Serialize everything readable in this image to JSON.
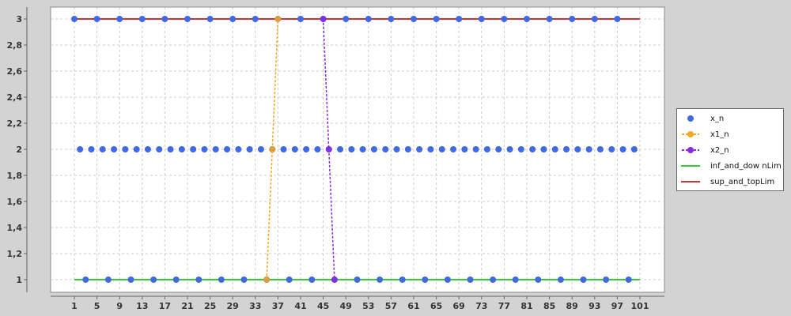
{
  "chart_data": {
    "type": "line",
    "xlim": [
      1,
      101
    ],
    "ylim": [
      1,
      3
    ],
    "x_ticks": [
      1,
      5,
      9,
      13,
      17,
      21,
      25,
      29,
      33,
      37,
      41,
      45,
      49,
      53,
      57,
      61,
      65,
      69,
      73,
      77,
      81,
      85,
      89,
      93,
      97,
      101
    ],
    "y_ticks": [
      1,
      1.2,
      1.4,
      1.6,
      1.8,
      2,
      2.2,
      2.4,
      2.6,
      2.8,
      3
    ],
    "y_tick_labels": [
      "1",
      "1,2",
      "1,4",
      "1,6",
      "1,8",
      "2",
      "2,2",
      "2,4",
      "2,6",
      "2,8",
      "3"
    ],
    "grid": true,
    "legend_position": "right",
    "series": [
      {
        "name": "x_n",
        "style": "points",
        "color": "#4169e1",
        "points": [
          [
            1,
            3
          ],
          [
            2,
            2
          ],
          [
            3,
            1
          ],
          [
            4,
            2
          ],
          [
            5,
            3
          ],
          [
            6,
            2
          ],
          [
            7,
            1
          ],
          [
            8,
            2
          ],
          [
            9,
            3
          ],
          [
            10,
            2
          ],
          [
            11,
            1
          ],
          [
            12,
            2
          ],
          [
            13,
            3
          ],
          [
            14,
            2
          ],
          [
            15,
            1
          ],
          [
            16,
            2
          ],
          [
            17,
            3
          ],
          [
            18,
            2
          ],
          [
            19,
            1
          ],
          [
            20,
            2
          ],
          [
            21,
            3
          ],
          [
            22,
            2
          ],
          [
            23,
            1
          ],
          [
            24,
            2
          ],
          [
            25,
            3
          ],
          [
            26,
            2
          ],
          [
            27,
            1
          ],
          [
            28,
            2
          ],
          [
            29,
            3
          ],
          [
            30,
            2
          ],
          [
            31,
            1
          ],
          [
            32,
            2
          ],
          [
            33,
            3
          ],
          [
            34,
            2
          ],
          [
            35,
            1
          ],
          [
            36,
            2
          ],
          [
            37,
            3
          ],
          [
            38,
            2
          ],
          [
            39,
            1
          ],
          [
            40,
            2
          ],
          [
            41,
            3
          ],
          [
            42,
            2
          ],
          [
            43,
            1
          ],
          [
            44,
            2
          ],
          [
            45,
            3
          ],
          [
            46,
            2
          ],
          [
            47,
            1
          ],
          [
            48,
            2
          ],
          [
            49,
            3
          ],
          [
            50,
            2
          ],
          [
            51,
            1
          ],
          [
            52,
            2
          ],
          [
            53,
            3
          ],
          [
            54,
            2
          ],
          [
            55,
            1
          ],
          [
            56,
            2
          ],
          [
            57,
            3
          ],
          [
            58,
            2
          ],
          [
            59,
            1
          ],
          [
            60,
            2
          ],
          [
            61,
            3
          ],
          [
            62,
            2
          ],
          [
            63,
            1
          ],
          [
            64,
            2
          ],
          [
            65,
            3
          ],
          [
            66,
            2
          ],
          [
            67,
            1
          ],
          [
            68,
            2
          ],
          [
            69,
            3
          ],
          [
            70,
            2
          ],
          [
            71,
            1
          ],
          [
            72,
            2
          ],
          [
            73,
            3
          ],
          [
            74,
            2
          ],
          [
            75,
            1
          ],
          [
            76,
            2
          ],
          [
            77,
            3
          ],
          [
            78,
            2
          ],
          [
            79,
            1
          ],
          [
            80,
            2
          ],
          [
            81,
            3
          ],
          [
            82,
            2
          ],
          [
            83,
            1
          ],
          [
            84,
            2
          ],
          [
            85,
            3
          ],
          [
            86,
            2
          ],
          [
            87,
            1
          ],
          [
            88,
            2
          ],
          [
            89,
            3
          ],
          [
            90,
            2
          ],
          [
            91,
            1
          ],
          [
            92,
            2
          ],
          [
            93,
            3
          ],
          [
            94,
            2
          ],
          [
            95,
            1
          ],
          [
            96,
            2
          ],
          [
            97,
            3
          ],
          [
            98,
            2
          ],
          [
            99,
            1
          ],
          [
            100,
            2
          ]
        ]
      },
      {
        "name": "x1_n",
        "style": "dashed-line-points",
        "color": "#f5a623",
        "points": [
          [
            35,
            1
          ],
          [
            36,
            2
          ],
          [
            37,
            3
          ]
        ]
      },
      {
        "name": "x2_n",
        "style": "dashed-line-points",
        "color": "#8a2be2",
        "points": [
          [
            45,
            3
          ],
          [
            46,
            2
          ],
          [
            47,
            1
          ]
        ]
      },
      {
        "name": "inf_and_dow nLim",
        "style": "line",
        "color": "#33cc33",
        "points": [
          [
            1,
            1
          ],
          [
            101,
            1
          ]
        ]
      },
      {
        "name": "sup_and_topLim",
        "style": "line",
        "color": "#cc3333",
        "points": [
          [
            1,
            3
          ],
          [
            101,
            3
          ]
        ]
      }
    ]
  }
}
